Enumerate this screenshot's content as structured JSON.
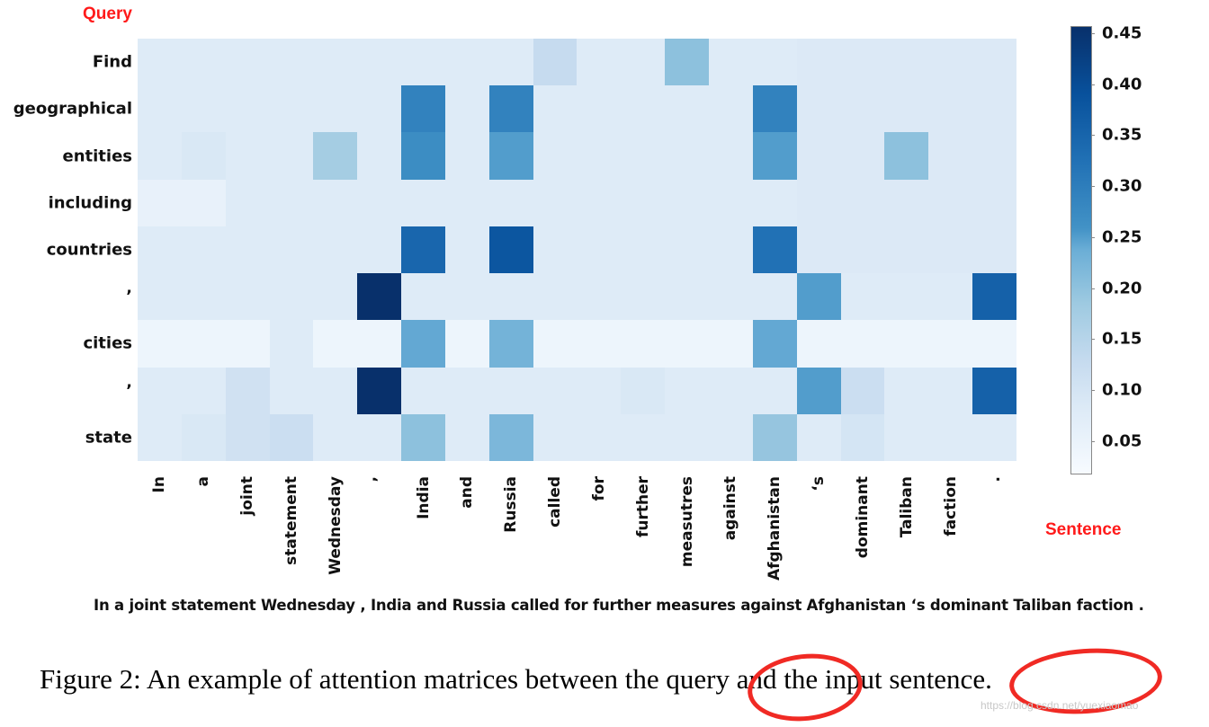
{
  "figure": {
    "query_title": "Query",
    "sentence_title": "Sentence",
    "sentence_text": "In a joint statement Wednesday , India and Russia called for further measures against Afghanistan ‘s dominant Taliban faction .",
    "caption": "Figure 2: An example of attention matrices between the query and the input sentence.",
    "watermark": "https://blog.csdn.net/yuexiaomao",
    "highlight_color": "#f02a24",
    "annotations": [
      "query",
      "sentence."
    ]
  },
  "chart_data": {
    "type": "heatmap",
    "title": "",
    "xlabel": "Sentence",
    "ylabel": "Query",
    "colormap": "Blues",
    "vmin": 0.0,
    "vmax": 0.45,
    "colorbar_ticks": [
      "0.45",
      "0.40",
      "0.35",
      "0.30",
      "0.25",
      "0.20",
      "0.15",
      "0.10",
      "0.05"
    ],
    "x": [
      "In",
      "a",
      "joint",
      "statement",
      "Wednesday",
      "’",
      "India",
      "and",
      "Russia",
      "called",
      "for",
      "further",
      "measutres",
      "against",
      "Afghanistan",
      "‘s",
      "dominant",
      "Taliban",
      "faction",
      "."
    ],
    "y": [
      "Find",
      "geographical",
      "entities",
      "including",
      "countries",
      "’",
      "cities",
      "’",
      "state"
    ],
    "values": [
      [
        0.05,
        0.05,
        0.05,
        0.05,
        0.05,
        0.05,
        0.05,
        0.05,
        0.05,
        0.1,
        0.05,
        0.05,
        0.18,
        0.05,
        0.05,
        0.055,
        0.055,
        0.055,
        0.055,
        0.055
      ],
      [
        0.05,
        0.05,
        0.05,
        0.05,
        0.05,
        0.05,
        0.3,
        0.05,
        0.3,
        0.05,
        0.05,
        0.05,
        0.05,
        0.05,
        0.3,
        0.055,
        0.055,
        0.055,
        0.055,
        0.055
      ],
      [
        0.05,
        0.06,
        0.05,
        0.05,
        0.15,
        0.05,
        0.28,
        0.05,
        0.25,
        0.05,
        0.05,
        0.05,
        0.05,
        0.05,
        0.25,
        0.055,
        0.055,
        0.18,
        0.055,
        0.055
      ],
      [
        0.03,
        0.03,
        0.05,
        0.05,
        0.05,
        0.05,
        0.05,
        0.05,
        0.05,
        0.05,
        0.05,
        0.05,
        0.05,
        0.05,
        0.05,
        0.055,
        0.055,
        0.055,
        0.055,
        0.055
      ],
      [
        0.05,
        0.05,
        0.05,
        0.05,
        0.05,
        0.05,
        0.35,
        0.05,
        0.38,
        0.05,
        0.05,
        0.05,
        0.05,
        0.05,
        0.33,
        0.055,
        0.055,
        0.055,
        0.055,
        0.055
      ],
      [
        0.05,
        0.05,
        0.05,
        0.05,
        0.05,
        0.45,
        0.05,
        0.05,
        0.05,
        0.05,
        0.05,
        0.05,
        0.05,
        0.05,
        0.05,
        0.25,
        0.05,
        0.05,
        0.05,
        0.36
      ],
      [
        0.02,
        0.02,
        0.02,
        0.05,
        0.02,
        0.02,
        0.23,
        0.02,
        0.21,
        0.02,
        0.02,
        0.02,
        0.02,
        0.02,
        0.23,
        0.02,
        0.02,
        0.02,
        0.02,
        0.02
      ],
      [
        0.05,
        0.05,
        0.08,
        0.05,
        0.05,
        0.45,
        0.05,
        0.05,
        0.05,
        0.05,
        0.05,
        0.06,
        0.05,
        0.05,
        0.05,
        0.25,
        0.09,
        0.05,
        0.05,
        0.36
      ],
      [
        0.05,
        0.06,
        0.08,
        0.09,
        0.05,
        0.05,
        0.18,
        0.05,
        0.2,
        0.05,
        0.05,
        0.05,
        0.05,
        0.05,
        0.17,
        0.05,
        0.07,
        0.05,
        0.05,
        0.05
      ]
    ]
  }
}
